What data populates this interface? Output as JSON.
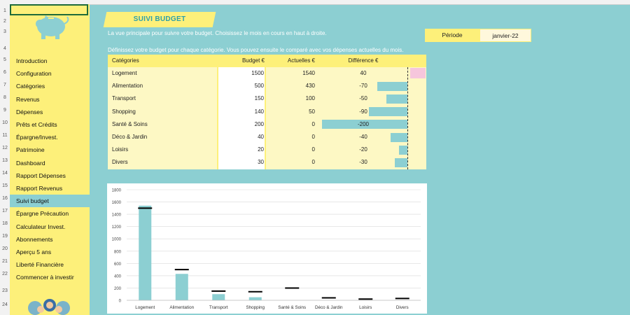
{
  "row_numbers": [
    "1",
    "2",
    "3",
    "4",
    "5",
    "6",
    "7",
    "8",
    "9",
    "10",
    "11",
    "12",
    "13",
    "14",
    "15",
    "16",
    "17",
    "18",
    "19",
    "20",
    "21",
    "22",
    "23",
    "24"
  ],
  "sidebar": {
    "items": [
      {
        "label": "Introduction"
      },
      {
        "label": "Configuration"
      },
      {
        "label": "Catégories"
      },
      {
        "label": "Revenus"
      },
      {
        "label": "Dépenses"
      },
      {
        "label": "Prêts et Crédits"
      },
      {
        "label": "Épargne/Invest."
      },
      {
        "label": "Patrimoine"
      },
      {
        "label": "Dashboard"
      },
      {
        "label": "Rapport Dépenses"
      },
      {
        "label": "Rapport Revenus"
      },
      {
        "label": "Suivi budget"
      },
      {
        "label": "Épargne Précaution"
      },
      {
        "label": "Calculateur Invest."
      },
      {
        "label": "Abonnements"
      },
      {
        "label": "Aperçu 5 ans"
      },
      {
        "label": "Liberté Financière"
      },
      {
        "label": "Commencer à investir"
      }
    ],
    "active": "Suivi budget"
  },
  "header": {
    "title": "SUIVI BUDGET",
    "description": "La vue principale pour suivre votre budget. Choisissez le mois en cours en haut à droite.",
    "instruction": "Définissez votre budget pour chaque catégorie. Vous pouvez ensuite le comparé avec vos dépenses actuelles du mois."
  },
  "period": {
    "label": "Période",
    "value": "janvier-22"
  },
  "table": {
    "headers": {
      "category": "Catégories",
      "budget": "Budget €",
      "actual": "Actuelles €",
      "difference": "Différence €"
    },
    "rows": [
      {
        "category": "Logement",
        "budget": "1500",
        "actual": "1540",
        "difference": "40"
      },
      {
        "category": "Alimentation",
        "budget": "500",
        "actual": "430",
        "difference": "-70"
      },
      {
        "category": "Transport",
        "budget": "150",
        "actual": "100",
        "difference": "-50"
      },
      {
        "category": "Shopping",
        "budget": "140",
        "actual": "50",
        "difference": "-90"
      },
      {
        "category": "Santé & Soins",
        "budget": "200",
        "actual": "0",
        "difference": "-200"
      },
      {
        "category": "Déco & Jardin",
        "budget": "40",
        "actual": "0",
        "difference": "-40"
      },
      {
        "category": "Loisirs",
        "budget": "20",
        "actual": "0",
        "difference": "-20"
      },
      {
        "category": "Divers",
        "budget": "30",
        "actual": "0",
        "difference": "-30"
      }
    ]
  },
  "colors": {
    "accent_yellow": "#fdf07a",
    "teal": "#8ccfd2",
    "title_teal": "#2ea0a8",
    "budget_marker": "#000000"
  },
  "chart_data": {
    "type": "bar",
    "categories": [
      "Logement",
      "Alimentation",
      "Transport",
      "Shopping",
      "Santé & Soins",
      "Déco & Jardin",
      "Loisirs",
      "Divers"
    ],
    "series": [
      {
        "values": [
          1540,
          430,
          100,
          50,
          0,
          0,
          0,
          0
        ]
      },
      {
        "values": [
          1500,
          500,
          150,
          140,
          200,
          40,
          20,
          30
        ]
      }
    ],
    "ylim": [
      0,
      1800
    ],
    "yticks": [
      0,
      200,
      400,
      600,
      800,
      1000,
      1200,
      1400,
      1600,
      1800
    ],
    "grid": true
  }
}
